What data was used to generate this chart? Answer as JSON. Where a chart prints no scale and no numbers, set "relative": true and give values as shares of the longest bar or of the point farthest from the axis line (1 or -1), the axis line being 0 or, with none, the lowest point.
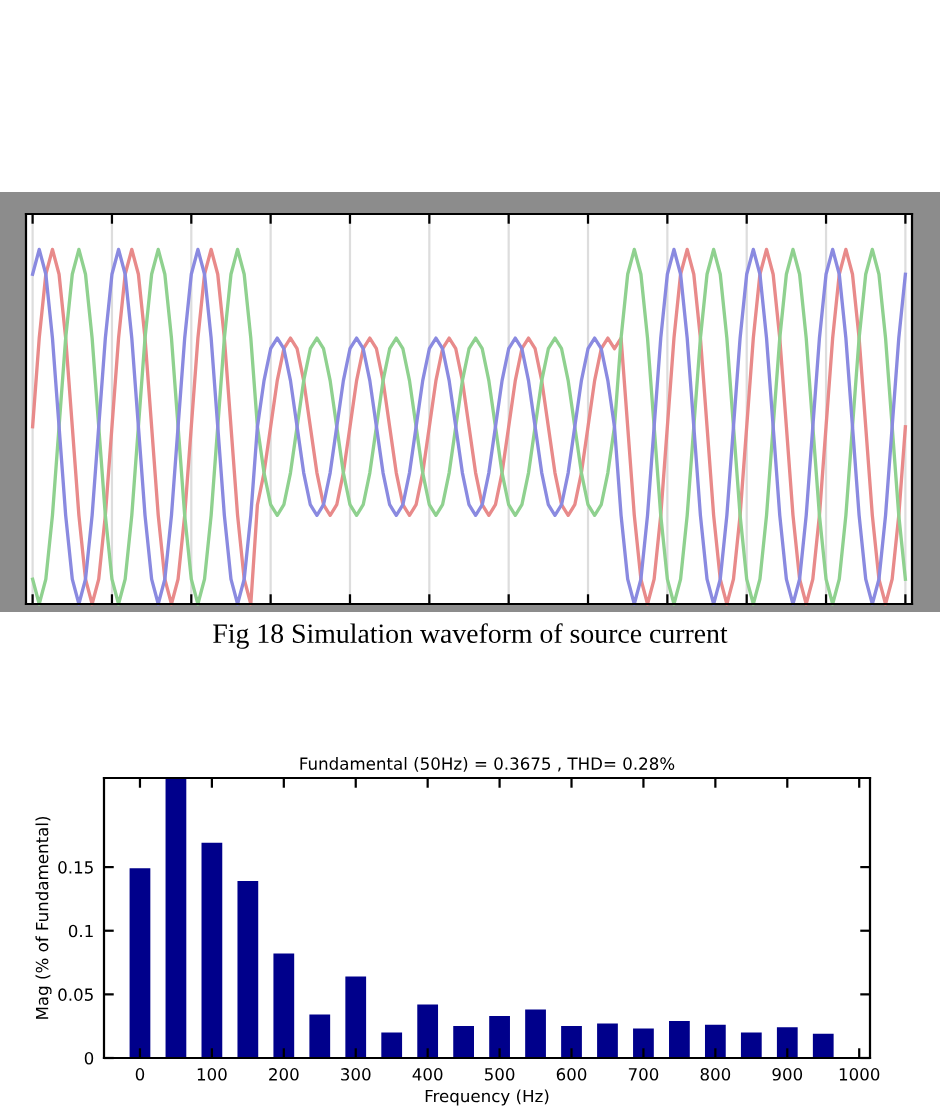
{
  "chart_data": [
    {
      "type": "line",
      "relative": true,
      "tick_labels": false,
      "grid": true,
      "annotations": [
        "Fig 18 Simulation waveform of source current"
      ],
      "categories": [
        null,
        null,
        null,
        null,
        null,
        null,
        null,
        null,
        null,
        null,
        null,
        null,
        null,
        null,
        null,
        null,
        null,
        null,
        null,
        null,
        null,
        null,
        null,
        null,
        null,
        null,
        null,
        null,
        null,
        null,
        null,
        null,
        null,
        null,
        null,
        null,
        null,
        null,
        null,
        null,
        null,
        null,
        null,
        null,
        null,
        null,
        null,
        null,
        null,
        null,
        null,
        null,
        null,
        null,
        null,
        null,
        null,
        null,
        null,
        null,
        null,
        null,
        null,
        null,
        null,
        null,
        null,
        null,
        null,
        null,
        null,
        null,
        null,
        null,
        null,
        null,
        null,
        null,
        null,
        null,
        null,
        null,
        null,
        null,
        null,
        null,
        null,
        null,
        null,
        null,
        null,
        null,
        null,
        null,
        null,
        null,
        null,
        null,
        null,
        null,
        null,
        null,
        null,
        null,
        null,
        null,
        null,
        null,
        null,
        null,
        null,
        null,
        null,
        null,
        null,
        null,
        null,
        null,
        null,
        null,
        null,
        null,
        null,
        null,
        null,
        null,
        null,
        null,
        null,
        null,
        null,
        null,
        null
      ],
      "series": [
        {
          "color": "#e88a8a",
          "values": [
            0.5,
            0.75,
            0.93,
            1,
            0.93,
            0.75,
            0.5,
            0.25,
            0.07,
            0,
            0.07,
            0.25,
            0.5,
            0.75,
            0.93,
            1,
            0.93,
            0.75,
            0.5,
            0.25,
            0.07,
            0,
            0.07,
            0.25,
            0.5,
            0.75,
            0.93,
            1,
            0.93,
            0.75,
            0.5,
            0.25,
            0.07,
            0,
            0.28,
            0.37,
            0.5,
            0.63,
            0.72,
            0.75,
            0.72,
            0.63,
            0.5,
            0.37,
            0.28,
            0.25,
            0.28,
            0.37,
            0.5,
            0.63,
            0.72,
            0.75,
            0.72,
            0.63,
            0.5,
            0.37,
            0.28,
            0.25,
            0.28,
            0.37,
            0.5,
            0.63,
            0.72,
            0.75,
            0.72,
            0.63,
            0.5,
            0.37,
            0.28,
            0.25,
            0.28,
            0.37,
            0.5,
            0.63,
            0.72,
            0.75,
            0.72,
            0.63,
            0.5,
            0.37,
            0.28,
            0.25,
            0.28,
            0.37,
            0.5,
            0.63,
            0.72,
            0.75,
            0.72,
            0.75,
            0.5,
            0.25,
            0.07,
            0,
            0.07,
            0.25,
            0.5,
            0.75,
            0.93,
            1,
            0.93,
            0.75,
            0.5,
            0.25,
            0.07,
            0,
            0.07,
            0.25,
            0.5,
            0.75,
            0.93,
            1,
            0.93,
            0.75,
            0.5,
            0.25,
            0.07,
            0,
            0.07,
            0.25,
            0.5,
            0.75,
            0.93,
            1,
            0.93,
            0.75,
            0.5,
            0.25,
            0.07,
            0,
            0.07,
            0.25,
            0.5
          ]
        },
        {
          "color": "#8fd18f",
          "values": [
            0.07,
            0,
            0.07,
            0.25,
            0.5,
            0.75,
            0.93,
            1,
            0.93,
            0.75,
            0.5,
            0.25,
            0.07,
            0,
            0.07,
            0.25,
            0.5,
            0.75,
            0.93,
            1,
            0.93,
            0.75,
            0.5,
            0.25,
            0.07,
            0,
            0.07,
            0.25,
            0.5,
            0.75,
            0.93,
            1,
            0.93,
            0.75,
            0.5,
            0.37,
            0.28,
            0.25,
            0.28,
            0.37,
            0.5,
            0.63,
            0.72,
            0.75,
            0.72,
            0.63,
            0.5,
            0.37,
            0.28,
            0.25,
            0.28,
            0.37,
            0.5,
            0.63,
            0.72,
            0.75,
            0.72,
            0.63,
            0.5,
            0.37,
            0.28,
            0.25,
            0.28,
            0.37,
            0.5,
            0.63,
            0.72,
            0.75,
            0.72,
            0.63,
            0.5,
            0.37,
            0.28,
            0.25,
            0.28,
            0.37,
            0.5,
            0.63,
            0.72,
            0.75,
            0.72,
            0.63,
            0.5,
            0.37,
            0.28,
            0.25,
            0.28,
            0.37,
            0.5,
            0.75,
            0.93,
            1,
            0.93,
            0.75,
            0.5,
            0.25,
            0.07,
            0,
            0.07,
            0.25,
            0.5,
            0.75,
            0.93,
            1,
            0.93,
            0.75,
            0.5,
            0.25,
            0.07,
            0,
            0.07,
            0.25,
            0.5,
            0.75,
            0.93,
            1,
            0.93,
            0.75,
            0.5,
            0.25,
            0.07,
            0,
            0.07,
            0.25,
            0.5,
            0.75,
            0.93,
            1,
            0.93,
            0.75,
            0.5,
            0.25,
            0.07
          ]
        },
        {
          "color": "#8a8ae0",
          "values": [
            0.93,
            1,
            0.93,
            0.75,
            0.5,
            0.25,
            0.07,
            0,
            0.07,
            0.25,
            0.5,
            0.75,
            0.93,
            1,
            0.93,
            0.75,
            0.5,
            0.25,
            0.07,
            0,
            0.07,
            0.25,
            0.5,
            0.75,
            0.93,
            1,
            0.93,
            0.75,
            0.5,
            0.25,
            0.07,
            0,
            0.07,
            0.25,
            0.5,
            0.63,
            0.72,
            0.75,
            0.72,
            0.63,
            0.5,
            0.37,
            0.28,
            0.25,
            0.28,
            0.37,
            0.5,
            0.63,
            0.72,
            0.75,
            0.72,
            0.63,
            0.5,
            0.37,
            0.28,
            0.25,
            0.28,
            0.37,
            0.5,
            0.63,
            0.72,
            0.75,
            0.72,
            0.63,
            0.5,
            0.37,
            0.28,
            0.25,
            0.28,
            0.37,
            0.5,
            0.63,
            0.72,
            0.75,
            0.72,
            0.63,
            0.5,
            0.37,
            0.28,
            0.25,
            0.28,
            0.37,
            0.5,
            0.63,
            0.72,
            0.75,
            0.72,
            0.63,
            0.5,
            0.25,
            0.07,
            0,
            0.07,
            0.25,
            0.5,
            0.75,
            0.93,
            1,
            0.93,
            0.75,
            0.5,
            0.25,
            0.07,
            0,
            0.07,
            0.25,
            0.5,
            0.75,
            0.93,
            1,
            0.93,
            0.75,
            0.5,
            0.25,
            0.07,
            0,
            0.07,
            0.25,
            0.5,
            0.75,
            0.93,
            1,
            0.93,
            0.75,
            0.5,
            0.25,
            0.07,
            0,
            0.07,
            0.25,
            0.5,
            0.75,
            0.93
          ]
        }
      ]
    },
    {
      "type": "bar",
      "title": "Fundamental (50Hz) = 0.3675 , THD= 0.28%",
      "xlabel": "Frequency (Hz)",
      "ylabel": "Mag (% of Fundamental)",
      "grid": false,
      "x": [
        0,
        50,
        100,
        150,
        200,
        250,
        300,
        350,
        400,
        450,
        500,
        550,
        600,
        650,
        700,
        750,
        800,
        850,
        900,
        950
      ],
      "values": [
        0.148,
        0.219,
        0.168,
        0.138,
        0.081,
        0.033,
        0.063,
        0.019,
        0.041,
        0.024,
        0.032,
        0.037,
        0.024,
        0.026,
        0.022,
        0.028,
        0.025,
        0.019,
        0.023,
        0.018
      ],
      "color": "#00008b",
      "xlim": [
        -50,
        1015
      ],
      "xticks": [
        0,
        100,
        200,
        300,
        400,
        500,
        600,
        700,
        800,
        900,
        1000
      ],
      "ylim": [
        0,
        0.22
      ],
      "yticks": [
        0,
        0.05,
        0.1,
        0.15
      ]
    }
  ]
}
